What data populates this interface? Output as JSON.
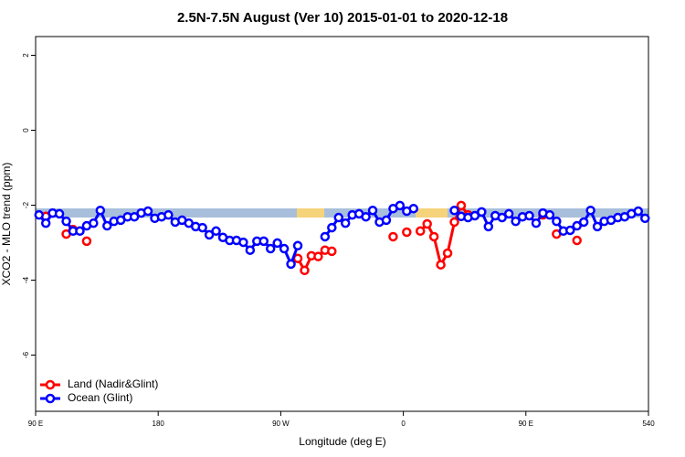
{
  "chart_data": {
    "type": "line",
    "title": "2.5N-7.5N August (Ver 10)   2015-01-01 to 2020-12-18",
    "x_label": "Longitude (deg E)",
    "y_label": "XCO2 - MLO trend (ppm)",
    "xlim": [
      90,
      540
    ],
    "ylim": [
      -7.5,
      2.5
    ],
    "xticks": [
      {
        "value": 90,
        "label": "90 E"
      },
      180,
      {
        "value": 270,
        "label": "90 W"
      },
      {
        "value": 360,
        "label": "0"
      },
      {
        "value": 450,
        "label": "90 E"
      },
      540
    ],
    "yticks": [
      2,
      0,
      -2,
      -4,
      -6
    ],
    "legend": "bottom-left",
    "x": [
      92.5,
      97.5,
      102.5,
      107.5,
      112.5,
      117.5,
      122.5,
      127.5,
      132.5,
      137.5,
      142.5,
      147.5,
      152.5,
      157.5,
      162.5,
      167.5,
      172.5,
      177.5,
      182.5,
      187.5,
      192.5,
      197.5,
      202.5,
      207.5,
      212.5,
      217.5,
      222.5,
      227.5,
      232.5,
      237.5,
      242.5,
      247.5,
      252.5,
      257.5,
      262.5,
      267.5,
      272.5,
      277.5,
      282.5,
      287.5,
      292.5,
      297.5,
      302.5,
      307.5,
      312.5,
      317.5,
      322.5,
      327.5,
      332.5,
      337.5,
      342.5,
      347.5,
      352.5,
      357.5,
      362.5,
      367.5,
      372.5,
      377.5,
      382.5,
      387.5,
      392.5,
      397.5,
      402.5,
      407.5,
      412.5,
      417.5,
      422.5,
      427.5,
      432.5,
      437.5,
      442.5,
      447.5,
      452.5,
      457.5,
      462.5,
      467.5,
      472.5,
      477.5,
      482.5,
      487.5,
      492.5,
      497.5,
      502.5,
      507.5,
      512.5,
      517.5,
      522.5,
      527.5,
      532.5,
      537.5
    ],
    "series": [
      {
        "name": "Land (Nadir&Glint)",
        "color": "#ff0000",
        "values": [
          null,
          -2.3,
          null,
          null,
          -2.77,
          -2.65,
          null,
          -2.96,
          null,
          null,
          null,
          null,
          null,
          null,
          null,
          null,
          null,
          null,
          null,
          null,
          null,
          null,
          null,
          null,
          null,
          null,
          null,
          null,
          null,
          null,
          null,
          null,
          null,
          null,
          null,
          null,
          null,
          null,
          -3.42,
          -3.74,
          -3.35,
          -3.37,
          -3.2,
          -3.23,
          null,
          null,
          null,
          null,
          null,
          null,
          null,
          null,
          -2.84,
          null,
          -2.72,
          null,
          -2.69,
          -2.5,
          -2.84,
          -3.59,
          -3.28,
          -2.45,
          -2.01,
          -2.26,
          null,
          null,
          null,
          null,
          null,
          null,
          null,
          null,
          null,
          null,
          -2.26,
          null,
          -2.77,
          null,
          null,
          -2.94,
          null,
          null,
          null,
          null,
          null,
          null,
          null,
          null,
          null,
          null
        ]
      },
      {
        "name": "Ocean (Glint)",
        "color": "#0000ff",
        "values": [
          -2.26,
          -2.48,
          -2.21,
          -2.23,
          -2.43,
          -2.69,
          -2.69,
          -2.55,
          -2.48,
          -2.14,
          -2.55,
          -2.43,
          -2.4,
          -2.31,
          -2.31,
          -2.21,
          -2.16,
          -2.35,
          -2.31,
          -2.26,
          -2.45,
          -2.4,
          -2.48,
          -2.57,
          -2.6,
          -2.79,
          -2.69,
          -2.86,
          -2.94,
          -2.94,
          -2.99,
          -3.2,
          -2.96,
          -2.96,
          -3.16,
          -3.01,
          -3.16,
          -3.57,
          -3.08,
          null,
          null,
          null,
          -2.84,
          -2.6,
          -2.33,
          -2.48,
          -2.26,
          -2.23,
          -2.31,
          -2.14,
          -2.45,
          -2.4,
          -2.09,
          -2.01,
          -2.16,
          -2.09,
          null,
          null,
          null,
          null,
          null,
          -2.14,
          -2.3,
          -2.33,
          -2.28,
          -2.18,
          -2.57,
          -2.28,
          -2.33,
          -2.23,
          -2.43,
          -2.31,
          -2.28,
          -2.48,
          -2.21,
          -2.26,
          -2.43,
          -2.69,
          -2.67,
          -2.55,
          -2.45,
          -2.14,
          -2.57,
          -2.43,
          -2.4,
          -2.33,
          -2.31,
          -2.23,
          -2.16,
          -2.35
        ]
      }
    ]
  }
}
